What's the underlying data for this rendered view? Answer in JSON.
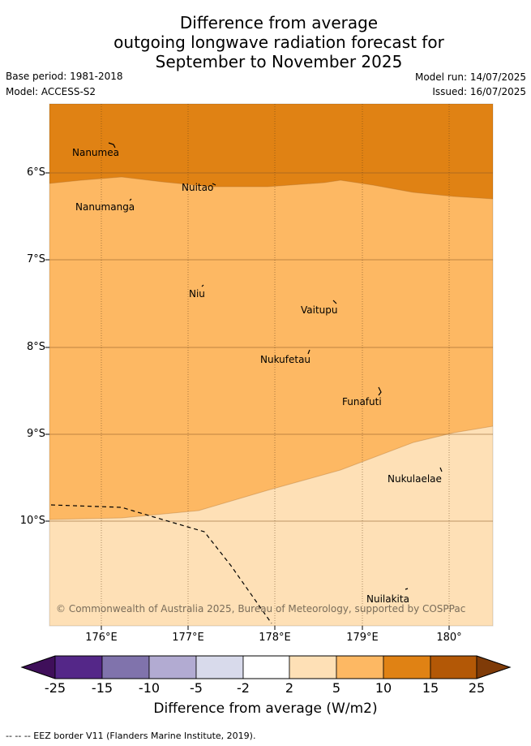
{
  "title": {
    "line1": "Difference from average",
    "line2": "outgoing longwave radiation forecast for",
    "line3": "September to November 2025"
  },
  "meta": {
    "base_period": "Base period: 1981-2018",
    "model": "Model: ACCESS-S2",
    "model_run": "Model run: 14/07/2025",
    "issued": "Issued: 16/07/2025"
  },
  "map": {
    "lat_labels": [
      "6°S",
      "7°S",
      "8°S",
      "9°S",
      "10°S"
    ],
    "lon_labels": [
      "176°E",
      "177°E",
      "178°E",
      "179°E",
      "180°"
    ],
    "places": [
      "Nanumea",
      "Nuitao",
      "Nanumanga",
      "Niu",
      "Vaitupu",
      "Nukufetau",
      "Funafuti",
      "Nukulaelae",
      "Nuilakita"
    ],
    "copyright": "© Commonwealth of Australia 2025, Bureau of Meteorology, supported by COSPPac",
    "region_colors": {
      "band_10_15": "#e08214",
      "band_5_10": "#fdb863",
      "band_2_5": "#fee0b6"
    }
  },
  "colorbar": {
    "ticks": [
      "-25",
      "-15",
      "-10",
      "-5",
      "-2",
      "2",
      "5",
      "10",
      "15",
      "25"
    ],
    "colors": [
      "#3f0f5a",
      "#542788",
      "#8073ac",
      "#b2abd2",
      "#d8daeb",
      "#ffffff",
      "#fee0b6",
      "#fdb863",
      "#e08214",
      "#b35806",
      "#7f3b08"
    ],
    "label": "Difference from average (W/m2)"
  },
  "footnote": "-- -- -- EEZ border V11 (Flanders Marine Institute, 2019)."
}
